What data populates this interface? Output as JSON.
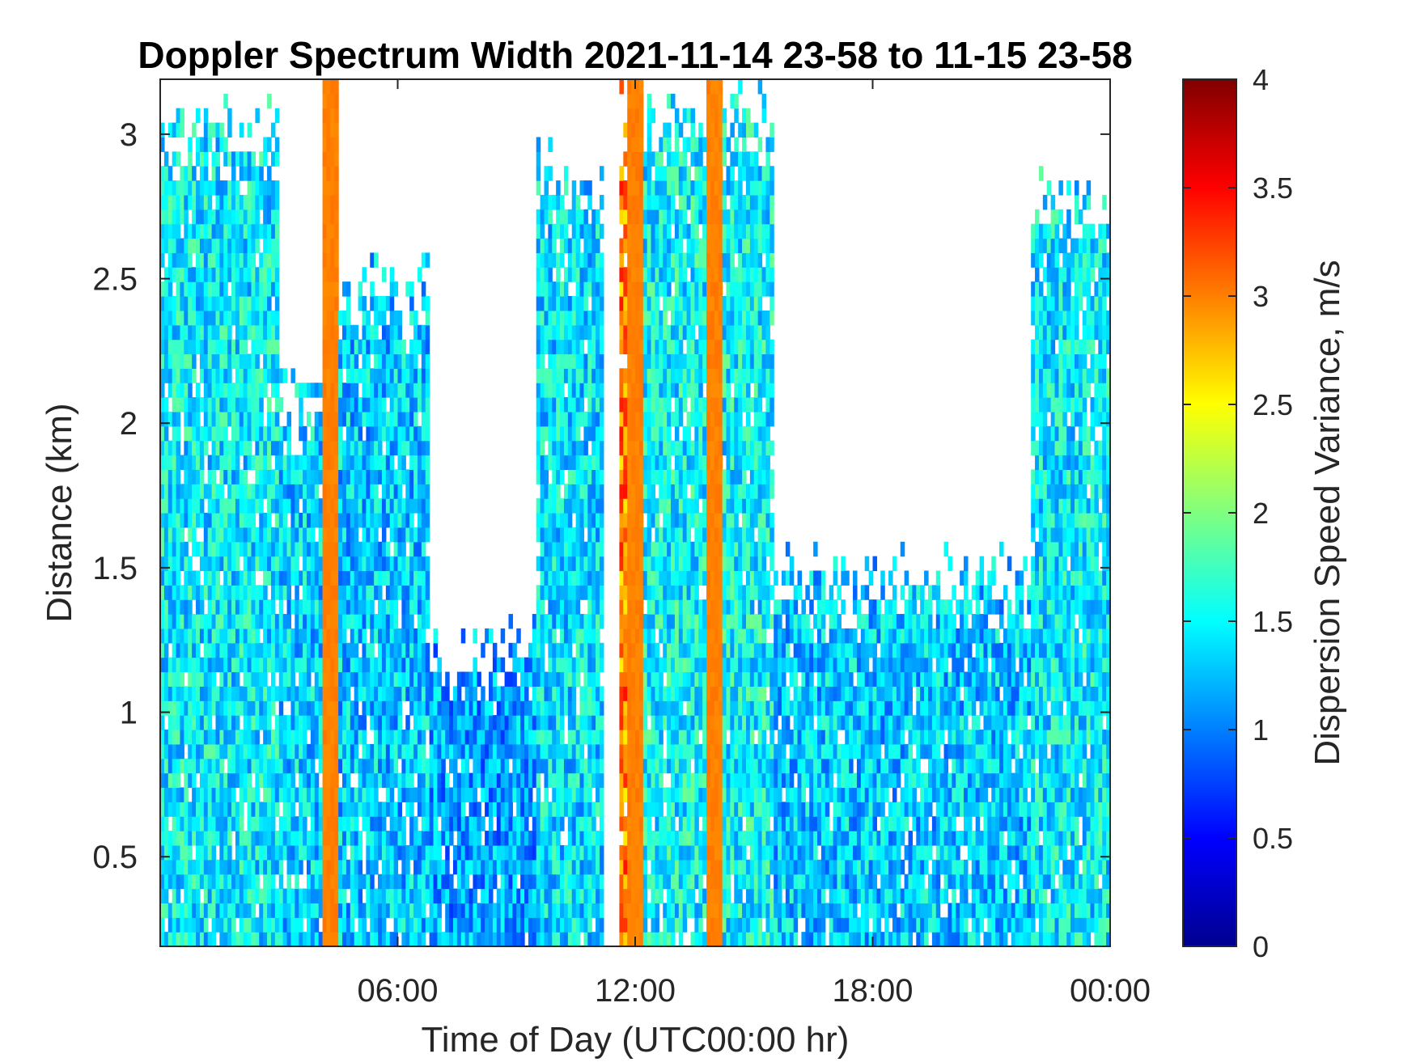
{
  "chart_data": {
    "type": "heatmap",
    "title": "Doppler Spectrum Width 2021-11-14 23-58 to 11-15 23-58",
    "xlabel": "Time of Day (UTC00:00 hr)",
    "ylabel": "Distance (km)",
    "xlim": [
      0,
      24
    ],
    "ylim": [
      0.19,
      3.19
    ],
    "x_ticks": [
      {
        "value": 6,
        "label": "06:00"
      },
      {
        "value": 12,
        "label": "12:00"
      },
      {
        "value": 18,
        "label": "18:00"
      },
      {
        "value": 24,
        "label": "00:00"
      }
    ],
    "y_ticks": [
      {
        "value": 0.5,
        "label": "0.5"
      },
      {
        "value": 1,
        "label": "1"
      },
      {
        "value": 1.5,
        "label": "1.5"
      },
      {
        "value": 2,
        "label": "2"
      },
      {
        "value": 2.5,
        "label": "2.5"
      },
      {
        "value": 3,
        "label": "3"
      }
    ],
    "colorbar": {
      "label": "Dispersion Speed Variance, m/s",
      "colormap": "jet",
      "clim": [
        0,
        4
      ],
      "ticks": [
        {
          "value": 0,
          "label": "0"
        },
        {
          "value": 0.5,
          "label": "0.5"
        },
        {
          "value": 1,
          "label": "1"
        },
        {
          "value": 1.5,
          "label": "1.5"
        },
        {
          "value": 2,
          "label": "2"
        },
        {
          "value": 2.5,
          "label": "2.5"
        },
        {
          "value": 3,
          "label": "3"
        },
        {
          "value": 3.5,
          "label": "3.5"
        },
        {
          "value": 4,
          "label": "4"
        }
      ]
    },
    "grid": false,
    "regions": [
      {
        "time": [
          0,
          3.0
        ],
        "height_top": 3.15,
        "typical_value": 1.45
      },
      {
        "time": [
          3.0,
          4.3
        ],
        "height_top": 2.2,
        "typical_value": 1.35
      },
      {
        "time": [
          4.3,
          6.8
        ],
        "height_top": 2.6,
        "typical_value": 1.3
      },
      {
        "time": [
          6.8,
          11.2
        ],
        "height_top": 1.35,
        "typical_value": 1.15
      },
      {
        "time": [
          9.5,
          11.2
        ],
        "height_top": 3.0,
        "typical_value": 1.4
      },
      {
        "time": [
          11.6,
          12.2
        ],
        "height_top": 3.19,
        "typical_value": 3.0
      },
      {
        "time": [
          12.2,
          15.5
        ],
        "height_top": 3.19,
        "typical_value": 1.5
      },
      {
        "time": [
          15.5,
          22.0
        ],
        "height_top": 1.6,
        "typical_value": 1.3
      },
      {
        "time": [
          22.0,
          24.0
        ],
        "height_top": 2.9,
        "typical_value": 1.45
      }
    ],
    "bands": [
      {
        "time": 4.3,
        "typical_value": 3.0
      },
      {
        "time": 12.0,
        "typical_value": 3.0
      },
      {
        "time": 14.0,
        "typical_value": 3.0
      }
    ]
  }
}
